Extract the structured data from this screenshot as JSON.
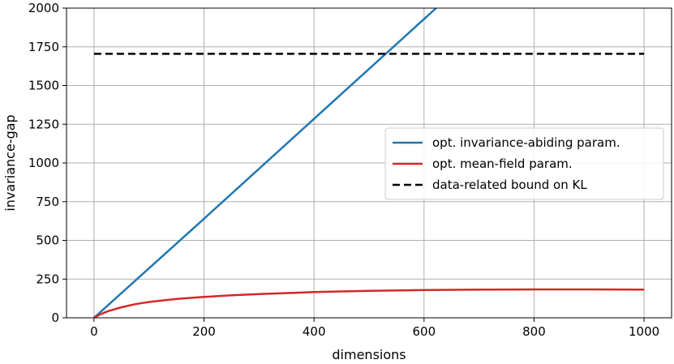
{
  "chart_data": {
    "type": "line",
    "title": "",
    "xlabel": "dimensions",
    "ylabel": "invariance-gap",
    "xlim": [
      -50,
      1050
    ],
    "ylim": [
      0,
      2000
    ],
    "x_ticks": [
      0,
      200,
      400,
      600,
      800,
      1000
    ],
    "x_tick_labels": [
      "0",
      "200",
      "400",
      "600",
      "800",
      "1000"
    ],
    "y_ticks": [
      0,
      250,
      500,
      750,
      1000,
      1250,
      1500,
      1750,
      2000
    ],
    "y_tick_labels": [
      "0",
      "250",
      "500",
      "750",
      "1000",
      "1250",
      "1500",
      "1750",
      "2000"
    ],
    "grid": true,
    "legend_position": "center-right",
    "series": [
      {
        "name": "opt. invariance-abiding param.",
        "color": "#1f77b4",
        "dash": "solid",
        "x": [
          0,
          200,
          400,
          622
        ],
        "y": [
          0,
          640,
          1285,
          2000
        ]
      },
      {
        "name": "opt. mean-field param.",
        "color": "#d62728",
        "dash": "solid",
        "x": [
          0,
          10,
          25,
          50,
          75,
          100,
          150,
          200,
          250,
          300,
          400,
          500,
          600,
          700,
          800,
          900,
          1000
        ],
        "y": [
          0,
          20,
          42,
          68,
          88,
          102,
          122,
          135,
          145,
          153,
          166,
          174,
          179,
          182,
          183,
          183,
          182
        ]
      },
      {
        "name": "data-related bound on KL",
        "color": "#000000",
        "dash": "dashed",
        "x": [
          0,
          1000
        ],
        "y": [
          1705,
          1705
        ]
      }
    ]
  }
}
